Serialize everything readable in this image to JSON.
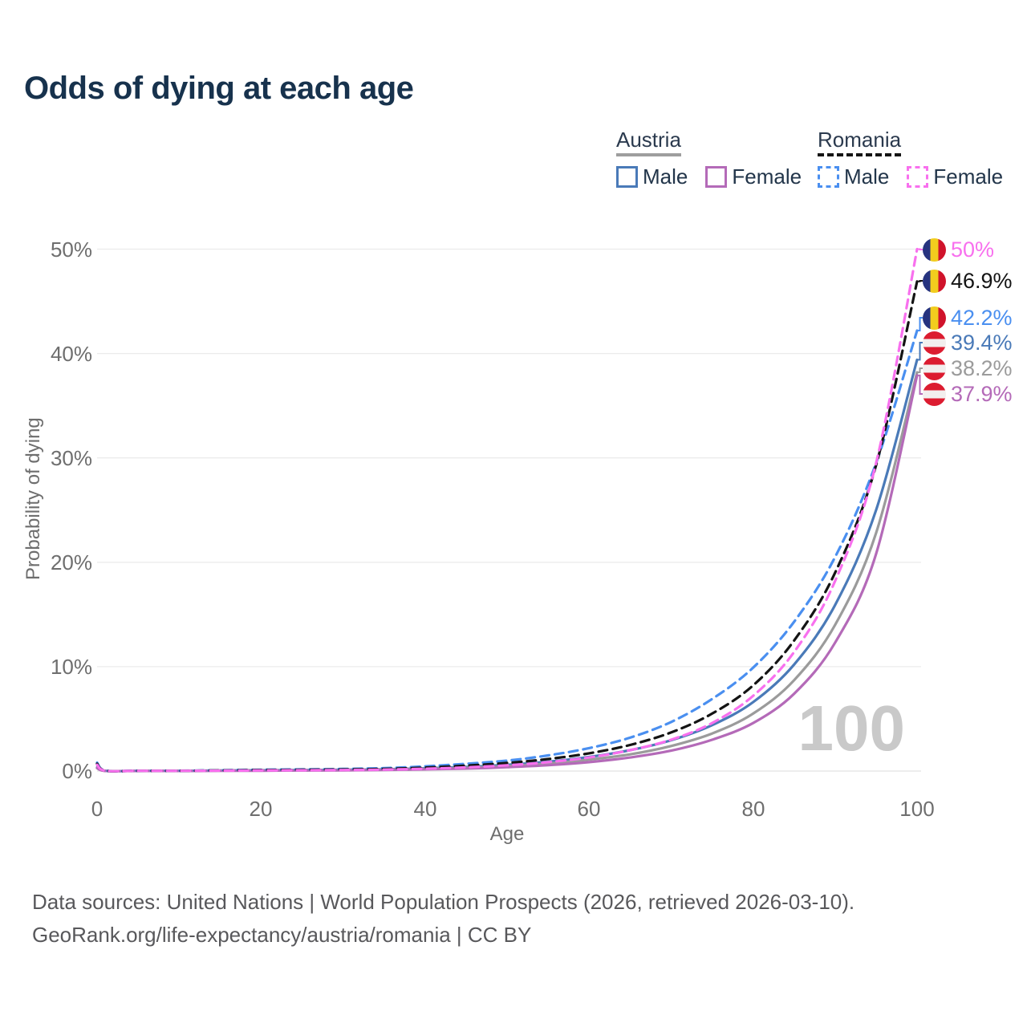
{
  "title": "Odds of dying at each age",
  "legend": {
    "groups": [
      {
        "country": "Austria",
        "line_style": "solid",
        "underline_color": "#9e9e9e",
        "items": [
          {
            "label": "Male",
            "color": "#4a7ab8"
          },
          {
            "label": "Female",
            "color": "#b46ab8"
          }
        ]
      },
      {
        "country": "Romania",
        "line_style": "dashed",
        "underline_color": "#141414",
        "items": [
          {
            "label": "Male",
            "color": "#4a8ff0"
          },
          {
            "label": "Female",
            "color": "#f870ee"
          }
        ]
      }
    ]
  },
  "axes": {
    "y_title": "Probability of dying",
    "x_title": "Age",
    "y_ticks": [
      "50%",
      "40%",
      "30%",
      "20%",
      "10%",
      "0%"
    ],
    "x_ticks": [
      "0",
      "20",
      "40",
      "60",
      "80",
      "100"
    ]
  },
  "watermark": "100",
  "end_labels": [
    {
      "text": "50%",
      "value": 50.0,
      "color": "#f870ee",
      "flag": "ro"
    },
    {
      "text": "46.9%",
      "value": 46.9,
      "color": "#141414",
      "flag": "ro"
    },
    {
      "text": "42.2%",
      "value": 42.2,
      "color": "#4a8ff0",
      "flag": "ro"
    },
    {
      "text": "39.4%",
      "value": 39.4,
      "color": "#4a7ab8",
      "flag": "at"
    },
    {
      "text": "38.2%",
      "value": 38.2,
      "color": "#9b9b9b",
      "flag": "at"
    },
    {
      "text": "37.9%",
      "value": 37.9,
      "color": "#b46ab8",
      "flag": "at"
    }
  ],
  "chart_data": {
    "type": "line",
    "title": "Odds of dying at each age",
    "xlabel": "Age",
    "ylabel": "Probability of dying",
    "xlim": [
      0,
      100
    ],
    "ylim": [
      0,
      50
    ],
    "grid": true,
    "legend_position": "top-right",
    "x": [
      0,
      1,
      5,
      10,
      15,
      20,
      25,
      30,
      35,
      40,
      45,
      50,
      55,
      60,
      65,
      70,
      75,
      80,
      85,
      90,
      95,
      100
    ],
    "series": [
      {
        "name": "Austria Male",
        "color": "#4a7ab8",
        "dashed": false,
        "end_label": "39.4%",
        "values": [
          0.35,
          0.02,
          0.015,
          0.015,
          0.05,
          0.08,
          0.1,
          0.12,
          0.17,
          0.26,
          0.4,
          0.6,
          0.9,
          1.35,
          2.0,
          2.95,
          4.4,
          6.6,
          10.2,
          15.9,
          25.0,
          39.4
        ]
      },
      {
        "name": "Austria Both sexes",
        "color": "#9b9b9b",
        "dashed": false,
        "end_label": "38.2%",
        "values": [
          0.3,
          0.018,
          0.012,
          0.012,
          0.04,
          0.06,
          0.08,
          0.1,
          0.14,
          0.21,
          0.32,
          0.48,
          0.72,
          1.1,
          1.6,
          2.4,
          3.6,
          5.5,
          8.7,
          14.0,
          22.8,
          38.2
        ]
      },
      {
        "name": "Austria Female",
        "color": "#b46ab8",
        "dashed": false,
        "end_label": "37.9%",
        "values": [
          0.28,
          0.015,
          0.01,
          0.01,
          0.02,
          0.03,
          0.05,
          0.07,
          0.1,
          0.16,
          0.24,
          0.37,
          0.56,
          0.85,
          1.3,
          1.95,
          3.0,
          4.6,
          7.4,
          12.3,
          20.8,
          37.9
        ]
      },
      {
        "name": "Romania Male",
        "color": "#4a8ff0",
        "dashed": true,
        "end_label": "42.2%",
        "values": [
          0.8,
          0.04,
          0.03,
          0.03,
          0.08,
          0.13,
          0.16,
          0.2,
          0.28,
          0.45,
          0.7,
          1.0,
          1.5,
          2.2,
          3.2,
          4.7,
          6.9,
          9.9,
          14.3,
          20.5,
          29.5,
          42.2
        ]
      },
      {
        "name": "Romania Both sexes",
        "color": "#141414",
        "dashed": true,
        "end_label": "46.9%",
        "values": [
          0.7,
          0.035,
          0.025,
          0.025,
          0.06,
          0.1,
          0.12,
          0.15,
          0.21,
          0.33,
          0.52,
          0.78,
          1.15,
          1.7,
          2.5,
          3.7,
          5.5,
          8.2,
          12.5,
          19.0,
          29.3,
          46.9
        ]
      },
      {
        "name": "Romania Female",
        "color": "#f870ee",
        "dashed": true,
        "end_label": "50%",
        "values": [
          0.6,
          0.03,
          0.02,
          0.02,
          0.04,
          0.06,
          0.08,
          0.1,
          0.14,
          0.22,
          0.35,
          0.55,
          0.85,
          1.3,
          2.0,
          3.0,
          4.6,
          7.2,
          11.4,
          18.2,
          29.5,
          50.0
        ]
      }
    ]
  },
  "footer": {
    "line1": "Data sources: United Nations | World Population Prospects (2026, retrieved 2026-03-10).",
    "line2": "GeoRank.org/life-expectancy/austria/romania | CC BY"
  }
}
